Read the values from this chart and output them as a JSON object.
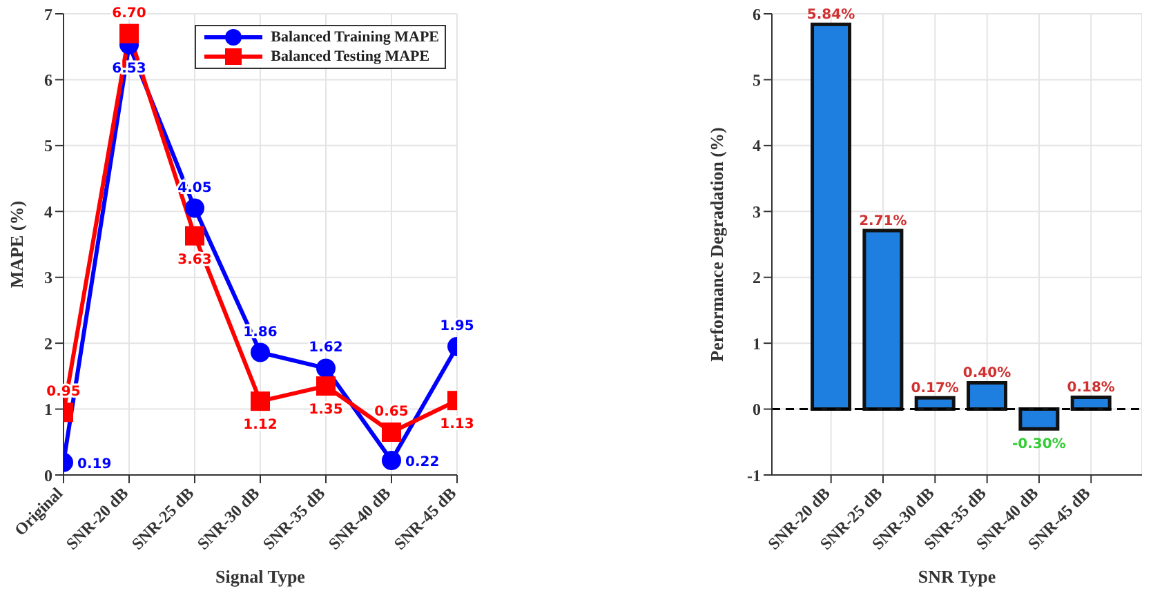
{
  "chart_data": [
    {
      "type": "line",
      "xlabel": "Signal Type",
      "ylabel": "MAPE (%)",
      "categories": [
        "Original",
        "SNR-20 dB",
        "SNR-25 dB",
        "SNR-30 dB",
        "SNR-35 dB",
        "SNR-40 dB",
        "SNR-45 dB"
      ],
      "series": [
        {
          "name": "Balanced Training MAPE",
          "color": "#0000ff",
          "marker": "circle",
          "values": [
            0.19,
            6.53,
            4.05,
            1.86,
            1.62,
            0.22,
            1.95
          ],
          "value_labels": [
            "0.19",
            "6.53",
            "4.05",
            "1.86",
            "1.62",
            "0.22",
            "1.95"
          ]
        },
        {
          "name": "Balanced Testing MAPE",
          "color": "#ff0000",
          "marker": "square",
          "values": [
            0.95,
            6.7,
            3.63,
            1.12,
            1.35,
            0.65,
            1.13
          ],
          "value_labels": [
            "0.95",
            "6.70",
            "3.63",
            "1.12",
            "1.35",
            "0.65",
            "1.13"
          ]
        }
      ],
      "ylim": [
        0,
        7
      ],
      "yticks": [
        0,
        1,
        2,
        3,
        4,
        5,
        6,
        7
      ],
      "grid": true,
      "legend": "top right",
      "line_style": "solid"
    },
    {
      "type": "bar",
      "xlabel": "SNR Type",
      "ylabel": "Performance Degradation (%)",
      "categories": [
        "SNR-20 dB",
        "SNR-25 dB",
        "SNR-30 dB",
        "SNR-35 dB",
        "SNR-40 dB",
        "SNR-45 dB"
      ],
      "values": [
        5.84,
        2.71,
        0.17,
        0.4,
        -0.3,
        0.18
      ],
      "color": "#1f7fe0",
      "value_labels": [
        "5.84%",
        "2.71%",
        "0.17%",
        "0.40%",
        "-0.30%",
        "0.18%"
      ],
      "ylim": [
        -1,
        6
      ],
      "yticks": [
        -1,
        0,
        1,
        2,
        3,
        4,
        5,
        6
      ],
      "grid": true,
      "ref_lines": [
        {
          "axis": "y",
          "value": 0,
          "color": "#000000",
          "line_style": "dashed"
        }
      ]
    }
  ]
}
